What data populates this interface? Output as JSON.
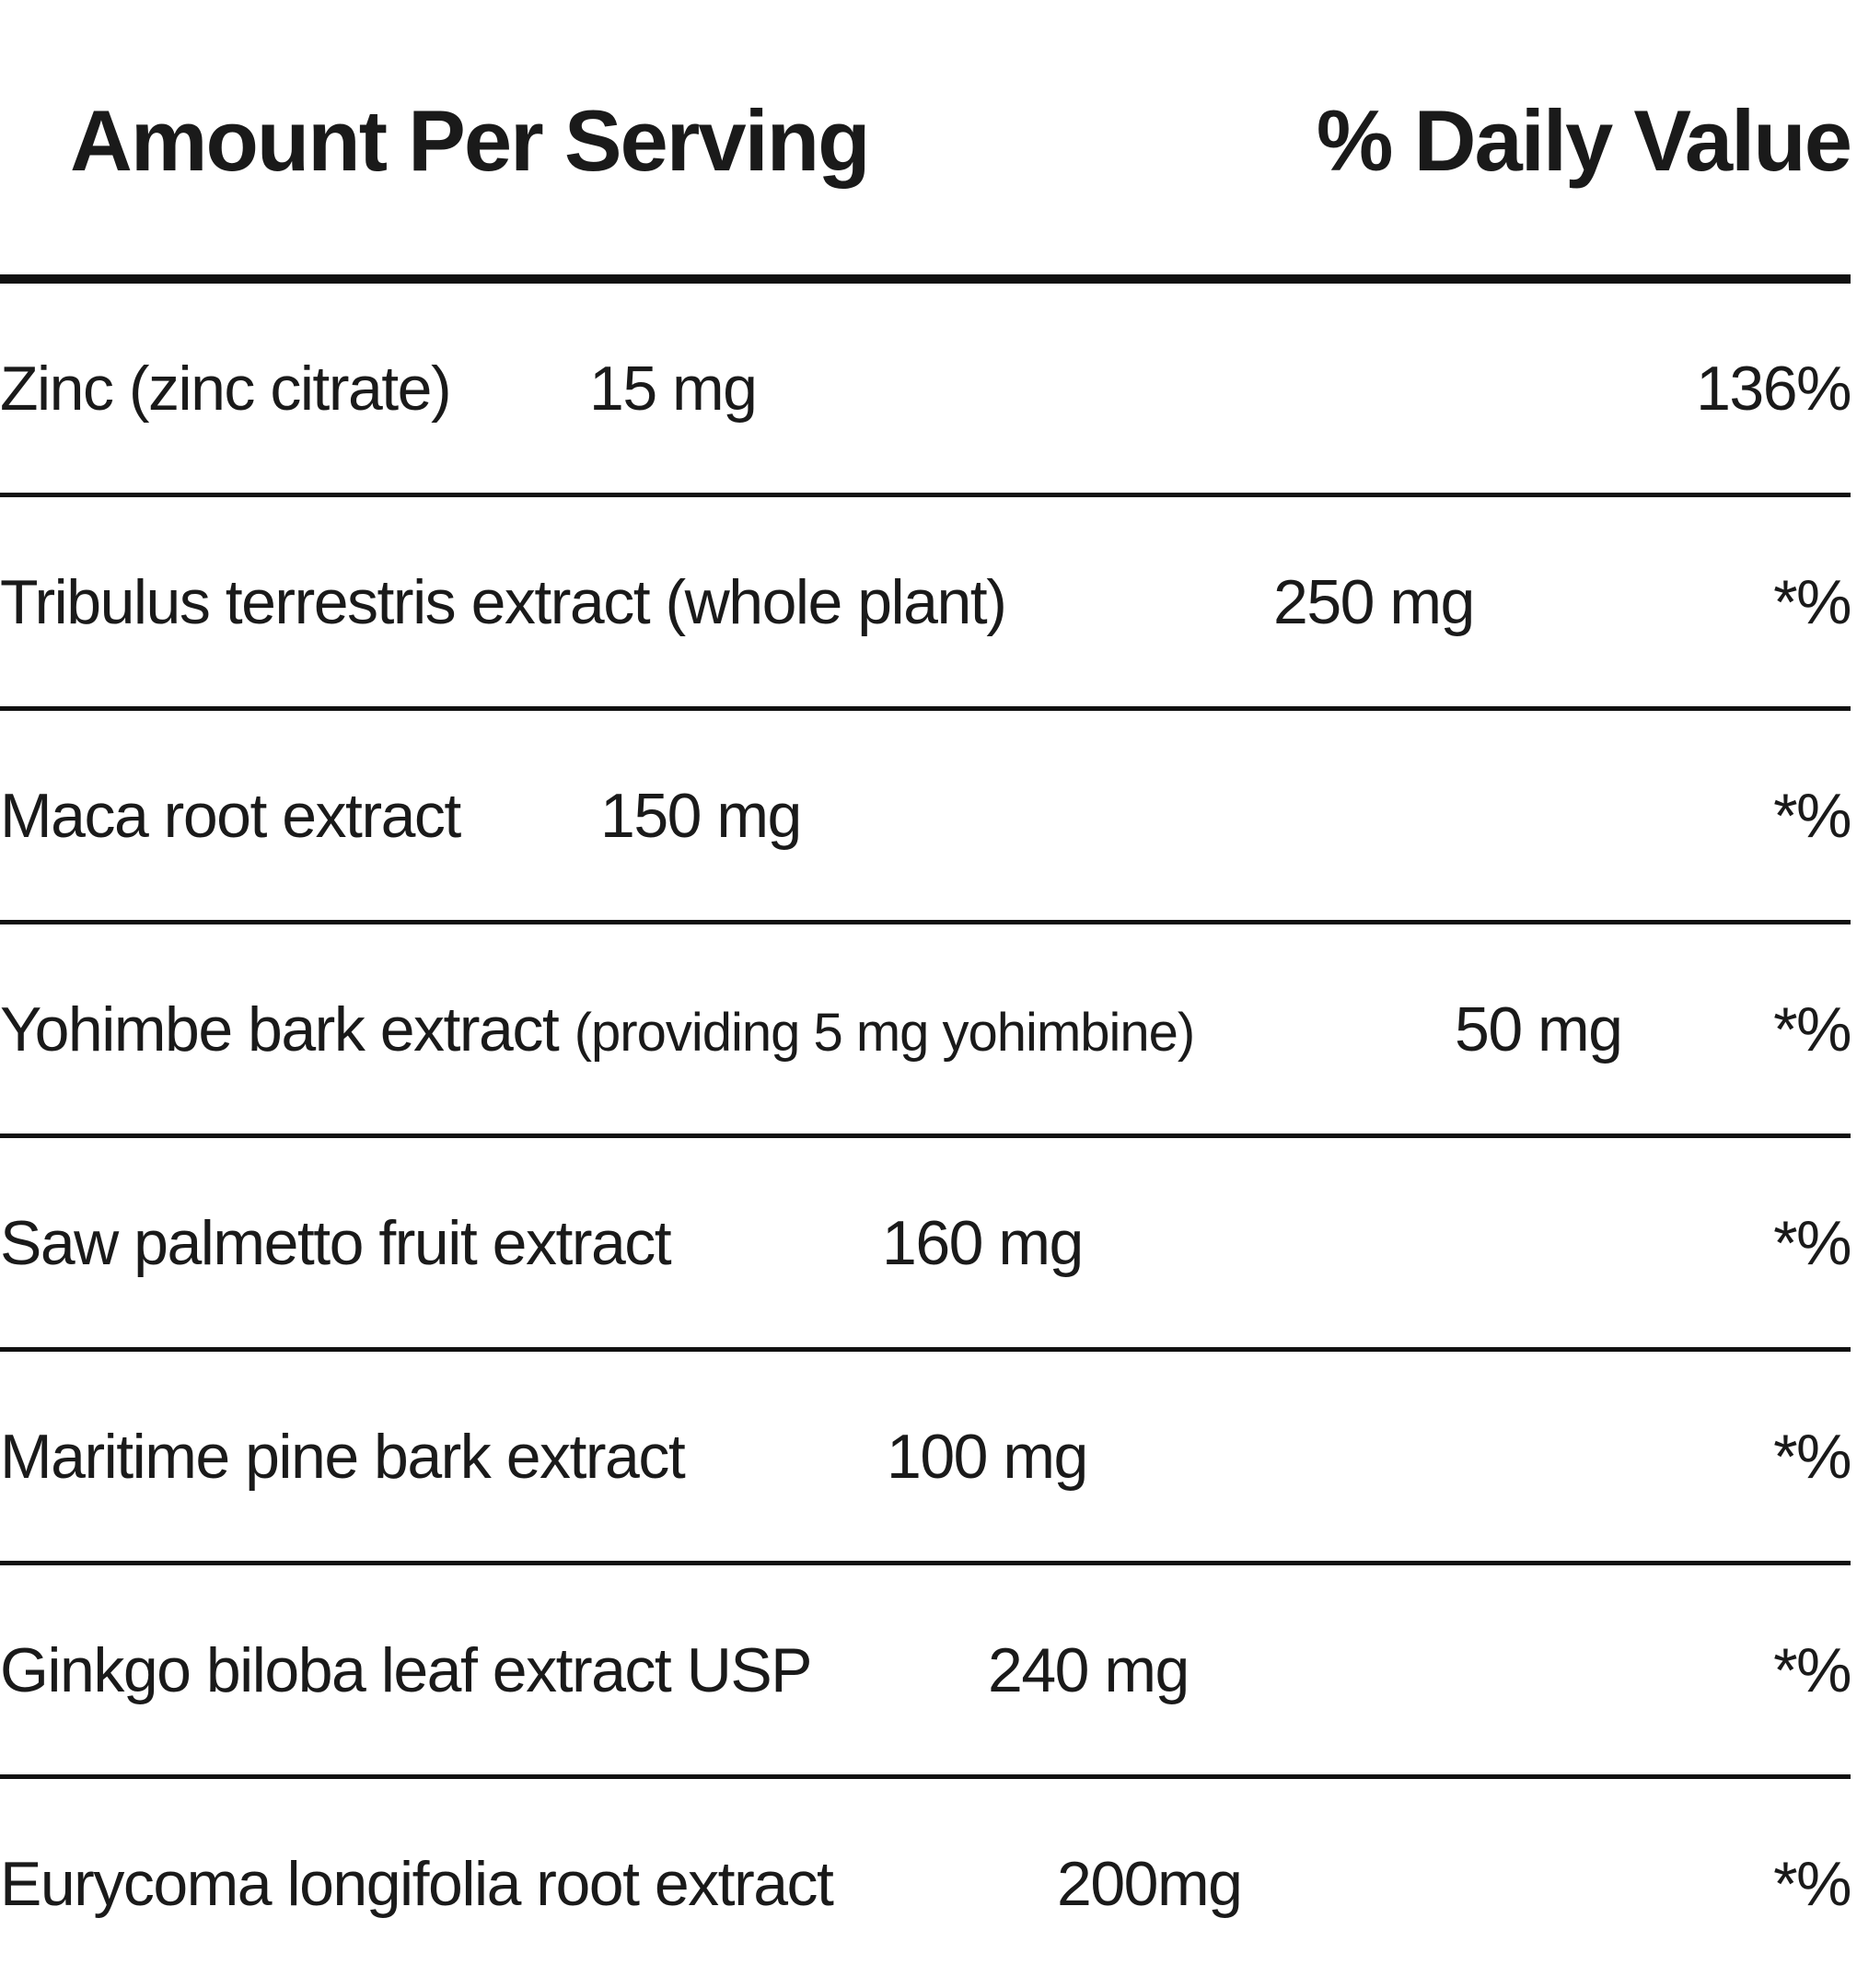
{
  "header": {
    "amount_label": "Amount Per Serving",
    "daily_value_label": "% Daily Value"
  },
  "rows": [
    {
      "name": "Zinc (zinc citrate)",
      "note": "",
      "amount": "15 mg",
      "dv": "136%"
    },
    {
      "name": "Tribulus terrestris extract (whole plant)",
      "note": "",
      "amount": "250 mg",
      "dv": "*%"
    },
    {
      "name": "Maca root extract",
      "note": "",
      "amount": "150 mg",
      "dv": "*%"
    },
    {
      "name": "Yohimbe bark extract",
      "note": "(providing 5 mg yohimbine)",
      "amount": "50 mg",
      "dv": "*%"
    },
    {
      "name": "Saw palmetto fruit extract",
      "note": "",
      "amount": "160 mg",
      "dv": "*%"
    },
    {
      "name": "Maritime pine bark extract",
      "note": "",
      "amount": "100 mg",
      "dv": "*%"
    },
    {
      "name": "Ginkgo biloba leaf extract USP",
      "note": "",
      "amount": "240 mg",
      "dv": "*%"
    },
    {
      "name": "Eurycoma longifolia root extract",
      "note": "",
      "amount": "200mg",
      "dv": "*%"
    }
  ]
}
